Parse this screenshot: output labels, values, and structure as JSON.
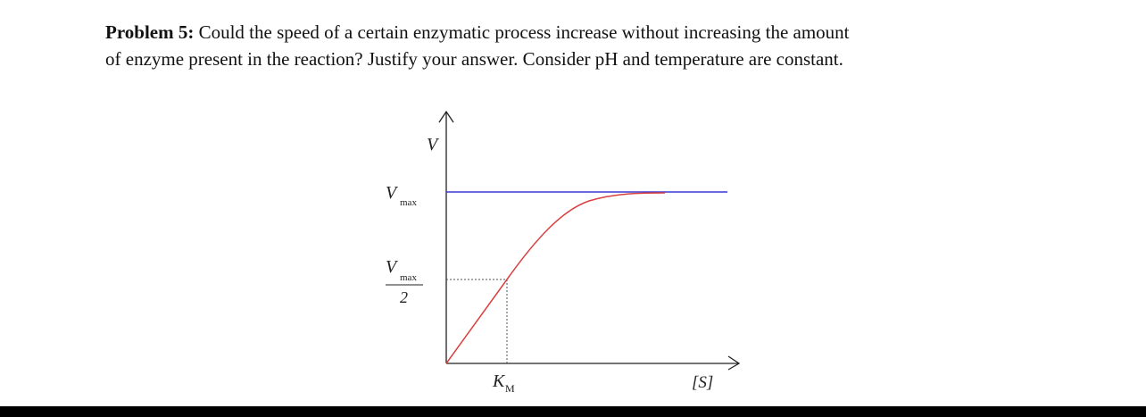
{
  "problem": {
    "label": "Problem 5:",
    "lines": [
      "Could the speed of a certain enzymatic process increase without increasing the amount",
      "of enzyme present in the reaction? Justify your answer. Consider pH and temperature are constant."
    ]
  },
  "diagram": {
    "y_label": "V",
    "vmax_label": {
      "symbol": "V",
      "subscript": "max"
    },
    "half_vmax_label": {
      "symbol": "V",
      "subscript": "max",
      "denominator": "2"
    },
    "km_label": {
      "symbol": "K",
      "subscript": "M"
    },
    "x_label": "[S]"
  }
}
